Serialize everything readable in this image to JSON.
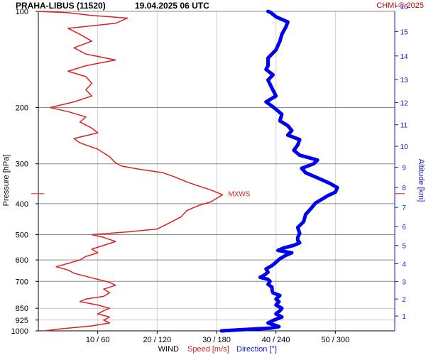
{
  "header": {
    "title": "PRAHA-LIBUS (11520)",
    "datetime": "19.04.2025 06 UTC",
    "credit": "CHMI © 2025"
  },
  "chart_data": {
    "type": "line",
    "title": "PRAHA-LIBUS (11520)    19.04.2025 06 UTC",
    "ylabel": "Pressure [hPa]",
    "y2label": "Altitude [km]",
    "xlabel": "WIND",
    "speed_label": "Speed [m/s]",
    "direction_label": "Direction [°]",
    "pressure_scale": "log",
    "pressure_range": [
      1000,
      100
    ],
    "pressure_ticks": [
      100,
      200,
      300,
      400,
      500,
      600,
      700,
      850,
      925,
      1000
    ],
    "pressure_tick_labels": [
      "100",
      "200",
      "300",
      "400",
      "500",
      "600",
      "700",
      "850",
      "925",
      "1000"
    ],
    "altitude_ticks": [
      1,
      2,
      3,
      4,
      5,
      6,
      7,
      8,
      9,
      10,
      11,
      12,
      13,
      14,
      15,
      16
    ],
    "altitude_tick_labels": [
      "1",
      "2",
      "3",
      "4",
      "5",
      "6",
      "7",
      "8",
      "9",
      "10",
      "11",
      "12",
      "13",
      "14",
      "15",
      "16"
    ],
    "x_ticks": [
      10,
      20,
      30,
      40,
      50
    ],
    "x_tick_labels": [
      "10 / 60",
      "20 / 120",
      "30 / 180",
      "40 / 240",
      "50 / 300"
    ],
    "speed_range": [
      0,
      60
    ],
    "direction_range": [
      0,
      360
    ],
    "grid": true,
    "annotations": [
      {
        "text": "MXWS",
        "pressure": 372,
        "speed": 31
      }
    ],
    "series": [
      {
        "name": "Speed [m/s]",
        "color": "#e02020",
        "points": [
          [
            1000,
            1
          ],
          [
            985,
            4
          ],
          [
            965,
            9
          ],
          [
            945,
            12
          ],
          [
            925,
            11
          ],
          [
            905,
            12
          ],
          [
            885,
            10
          ],
          [
            865,
            11
          ],
          [
            850,
            12
          ],
          [
            830,
            10
          ],
          [
            810,
            7
          ],
          [
            795,
            8
          ],
          [
            780,
            11
          ],
          [
            760,
            12
          ],
          [
            740,
            11
          ],
          [
            720,
            13
          ],
          [
            705,
            12
          ],
          [
            690,
            10
          ],
          [
            675,
            8
          ],
          [
            660,
            6
          ],
          [
            645,
            5
          ],
          [
            630,
            3
          ],
          [
            615,
            5
          ],
          [
            600,
            7
          ],
          [
            585,
            8
          ],
          [
            570,
            10
          ],
          [
            555,
            9
          ],
          [
            540,
            11
          ],
          [
            525,
            13
          ],
          [
            510,
            11
          ],
          [
            500,
            9
          ],
          [
            490,
            15
          ],
          [
            480,
            20
          ],
          [
            460,
            22
          ],
          [
            440,
            24
          ],
          [
            420,
            25
          ],
          [
            405,
            27
          ],
          [
            395,
            29
          ],
          [
            385,
            30
          ],
          [
            375,
            31
          ],
          [
            362,
            29
          ],
          [
            352,
            27
          ],
          [
            342,
            25
          ],
          [
            330,
            23
          ],
          [
            320,
            21
          ],
          [
            312,
            17
          ],
          [
            305,
            14
          ],
          [
            298,
            13
          ],
          [
            285,
            12
          ],
          [
            270,
            10
          ],
          [
            258,
            7
          ],
          [
            250,
            6
          ],
          [
            240,
            10
          ],
          [
            232,
            9
          ],
          [
            222,
            7
          ],
          [
            214,
            8
          ],
          [
            206,
            5
          ],
          [
            200,
            2
          ],
          [
            192,
            6
          ],
          [
            184,
            9
          ],
          [
            176,
            8
          ],
          [
            168,
            9
          ],
          [
            160,
            8
          ],
          [
            154,
            5
          ],
          [
            148,
            8
          ],
          [
            142,
            13
          ],
          [
            136,
            8
          ],
          [
            130,
            6
          ],
          [
            124,
            9
          ],
          [
            118,
            7
          ],
          [
            113,
            5
          ],
          [
            109,
            13
          ],
          [
            105,
            15
          ],
          [
            103,
            9
          ],
          [
            101,
            5
          ],
          [
            100,
            0
          ]
        ]
      },
      {
        "name": "Direction [°]",
        "color": "#0000ee",
        "points": [
          [
            1000,
            185
          ],
          [
            990,
            210
          ],
          [
            980,
            235
          ],
          [
            970,
            243
          ],
          [
            958,
            238
          ],
          [
            945,
            232
          ],
          [
            925,
            238
          ],
          [
            905,
            246
          ],
          [
            885,
            240
          ],
          [
            865,
            244
          ],
          [
            850,
            246
          ],
          [
            830,
            240
          ],
          [
            810,
            243
          ],
          [
            795,
            240
          ],
          [
            775,
            244
          ],
          [
            760,
            237
          ],
          [
            745,
            236
          ],
          [
            730,
            236
          ],
          [
            715,
            232
          ],
          [
            700,
            234
          ],
          [
            690,
            232
          ],
          [
            680,
            224
          ],
          [
            670,
            228
          ],
          [
            655,
            232
          ],
          [
            640,
            230
          ],
          [
            625,
            236
          ],
          [
            610,
            240
          ],
          [
            595,
            244
          ],
          [
            580,
            250
          ],
          [
            570,
            256
          ],
          [
            560,
            242
          ],
          [
            550,
            248
          ],
          [
            540,
            258
          ],
          [
            530,
            264
          ],
          [
            520,
            262
          ],
          [
            510,
            262
          ],
          [
            495,
            264
          ],
          [
            475,
            262
          ],
          [
            455,
            268
          ],
          [
            432,
            270
          ],
          [
            412,
            276
          ],
          [
            398,
            280
          ],
          [
            388,
            286
          ],
          [
            378,
            292
          ],
          [
            368,
            300
          ],
          [
            356,
            302
          ],
          [
            345,
            294
          ],
          [
            332,
            282
          ],
          [
            320,
            270
          ],
          [
            310,
            266
          ],
          [
            300,
            278
          ],
          [
            292,
            282
          ],
          [
            282,
            264
          ],
          [
            272,
            258
          ],
          [
            262,
            262
          ],
          [
            252,
            264
          ],
          [
            244,
            252
          ],
          [
            236,
            256
          ],
          [
            228,
            252
          ],
          [
            220,
            244
          ],
          [
            210,
            246
          ],
          [
            200,
            238
          ],
          [
            192,
            230
          ],
          [
            184,
            240
          ],
          [
            174,
            236
          ],
          [
            164,
            232
          ],
          [
            158,
            237
          ],
          [
            152,
            230
          ],
          [
            148,
            232
          ],
          [
            140,
            232
          ],
          [
            132,
            240
          ],
          [
            124,
            244
          ],
          [
            118,
            246
          ],
          [
            112,
            250
          ],
          [
            108,
            252
          ],
          [
            104,
            240
          ],
          [
            101,
            235
          ],
          [
            100,
            232
          ]
        ]
      }
    ],
    "thin_lines_pressure": [
      850,
      925
    ]
  }
}
